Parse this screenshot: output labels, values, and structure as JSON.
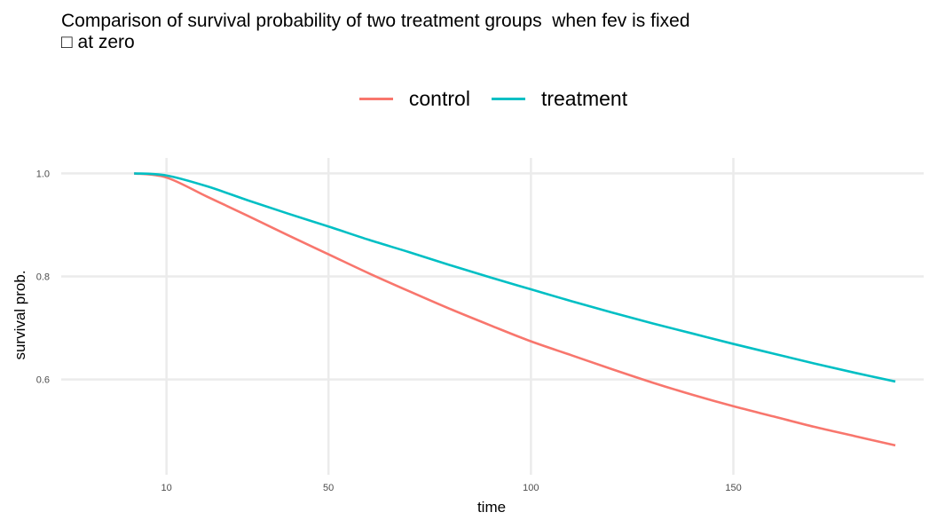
{
  "chart_data": {
    "type": "line",
    "title": "Comparison of survival probability of two treatment groups  when fev is fixed\n□ at zero",
    "xlabel": "time",
    "ylabel": "survival prob.",
    "xlim": [
      -16,
      197
    ],
    "ylim": [
      0.415,
      1.03
    ],
    "x_ticks": [
      10,
      50,
      100,
      150
    ],
    "y_ticks": [
      0.6,
      0.8,
      1.0
    ],
    "x_tick_labels": [
      "10",
      "50",
      "100",
      "150"
    ],
    "y_tick_labels": [
      "0.6",
      "0.8",
      "1.0"
    ],
    "grid": true,
    "legend_position": "top",
    "series": [
      {
        "name": "control",
        "color": "#F8766D",
        "x": [
          2,
          10,
          20,
          30,
          40,
          50,
          60,
          70,
          80,
          90,
          100,
          110,
          120,
          130,
          140,
          150,
          160,
          170,
          180,
          190
        ],
        "y": [
          1.0,
          0.992,
          0.955,
          0.918,
          0.88,
          0.843,
          0.806,
          0.771,
          0.737,
          0.705,
          0.674,
          0.647,
          0.62,
          0.594,
          0.57,
          0.548,
          0.528,
          0.508,
          0.49,
          0.472
        ]
      },
      {
        "name": "treatment",
        "color": "#00BFC4",
        "x": [
          2,
          10,
          20,
          30,
          40,
          50,
          60,
          70,
          80,
          90,
          100,
          110,
          120,
          130,
          140,
          150,
          160,
          170,
          180,
          190
        ],
        "y": [
          1.0,
          0.996,
          0.975,
          0.948,
          0.922,
          0.897,
          0.871,
          0.847,
          0.822,
          0.798,
          0.775,
          0.752,
          0.73,
          0.709,
          0.689,
          0.669,
          0.65,
          0.631,
          0.613,
          0.596
        ]
      }
    ]
  }
}
